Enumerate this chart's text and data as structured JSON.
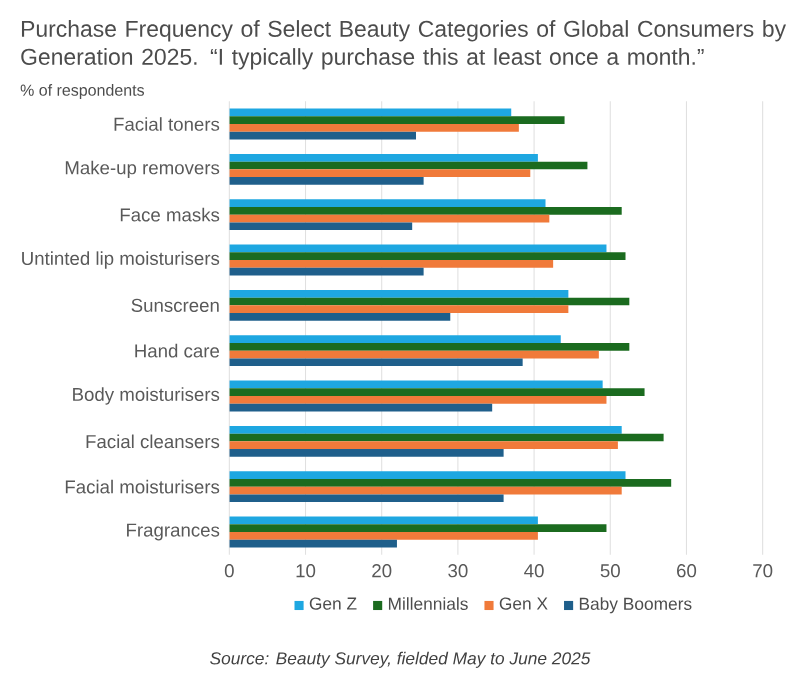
{
  "chart_data": {
    "type": "bar",
    "orientation": "horizontal",
    "title": "Purchase Frequency of Select Beauty Categories of Global Consumers by Generation 2025. “I typically purchase this at least once a month.”",
    "subtitle": "% of respondents",
    "categories": [
      "Facial toners",
      "Make-up removers",
      "Face masks",
      "Untinted lip moisturisers",
      "Sunscreen",
      "Hand care",
      "Body moisturisers",
      "Facial cleansers",
      "Facial moisturisers",
      "Fragrances"
    ],
    "series": [
      {
        "name": "Gen Z",
        "color": "#1ea7e1",
        "values": [
          37,
          40.5,
          41.5,
          49.5,
          44.5,
          43.5,
          49,
          51.5,
          52,
          40.5
        ]
      },
      {
        "name": "Millennials",
        "color": "#1b6b1f",
        "values": [
          44,
          47,
          51.5,
          52,
          52.5,
          52.5,
          54.5,
          57,
          58,
          49.5
        ]
      },
      {
        "name": "Gen X",
        "color": "#f07a3a",
        "values": [
          38,
          39.5,
          42,
          42.5,
          44.5,
          48.5,
          49.5,
          51,
          51.5,
          40.5
        ]
      },
      {
        "name": "Baby Boomers",
        "color": "#1f5f8b",
        "values": [
          24.5,
          25.5,
          24,
          25.5,
          29,
          38.5,
          34.5,
          36,
          36,
          22
        ]
      }
    ],
    "xlim": [
      0,
      70
    ],
    "xticks": [
      0,
      10,
      20,
      30,
      40,
      50,
      60,
      70
    ],
    "grid": "x",
    "legend": "bottom",
    "annotations": [
      "Source: Beauty Survey, fielded May to June 2025"
    ]
  }
}
